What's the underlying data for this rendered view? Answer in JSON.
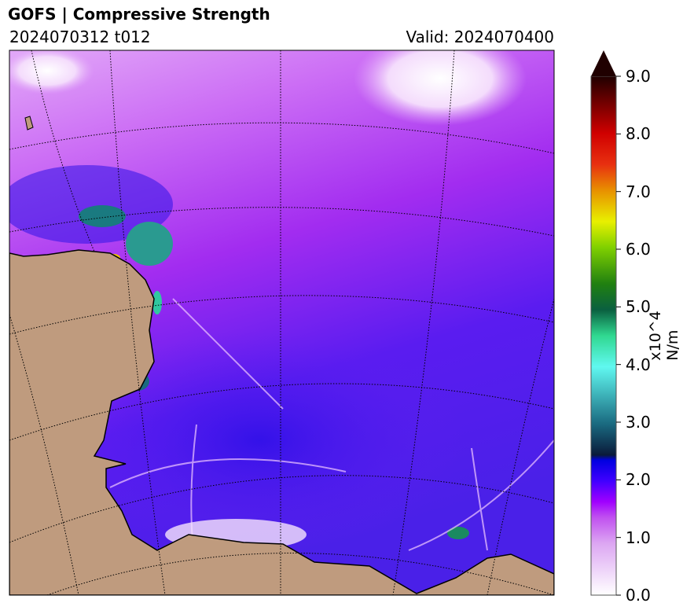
{
  "header": {
    "title": "GOFS  |  Compressive Strength",
    "run": "2024070312 t012",
    "valid": "Valid: 2024070400"
  },
  "colorbar": {
    "label": "x10^4 N/m",
    "min": 0.0,
    "max": 9.0,
    "extend": "max",
    "ticks": [
      "0.0",
      "1.0",
      "2.0",
      "3.0",
      "4.0",
      "5.0",
      "6.0",
      "7.0",
      "8.0",
      "9.0"
    ]
  },
  "colors": {
    "land": "#bf9b7e",
    "coast": "#000000"
  }
}
